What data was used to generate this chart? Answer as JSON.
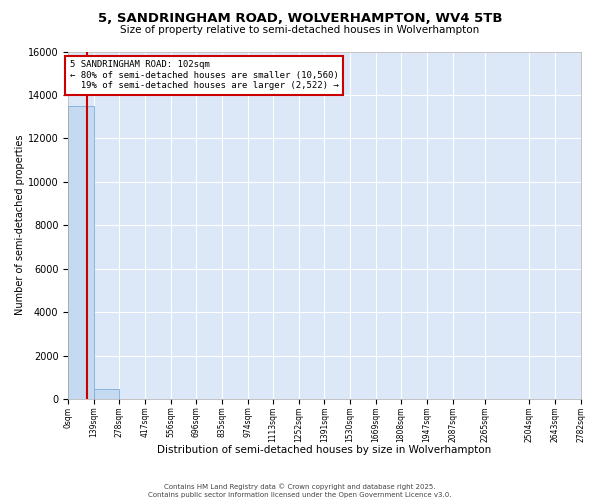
{
  "title": "5, SANDRINGHAM ROAD, WOLVERHAMPTON, WV4 5TB",
  "subtitle": "Size of property relative to semi-detached houses in Wolverhampton",
  "xlabel": "Distribution of semi-detached houses by size in Wolverhampton",
  "ylabel": "Number of semi-detached properties",
  "property_size": 102,
  "property_label": "5 SANDRINGHAM ROAD: 102sqm",
  "pct_smaller": 80,
  "n_smaller": 10560,
  "pct_larger": 19,
  "n_larger": 2522,
  "bin_edges": [
    0,
    139,
    278,
    417,
    556,
    696,
    835,
    974,
    1113,
    1252,
    1391,
    1530,
    1669,
    1808,
    1947,
    2087,
    2265,
    2504,
    2643,
    2782
  ],
  "bar_heights": [
    13500,
    480,
    4,
    2,
    1,
    0,
    0,
    0,
    0,
    0,
    0,
    0,
    0,
    0,
    0,
    0,
    0,
    0,
    0
  ],
  "bar_color": "#c5d9f0",
  "bar_edge_color": "#7aaddb",
  "red_line_color": "#cc0000",
  "annotation_box_color": "#cc0000",
  "annotation_bg_color": "#ffffff",
  "background_color": "#dce8f8",
  "grid_color": "#ffffff",
  "ylim": [
    0,
    16000
  ],
  "yticks": [
    0,
    2000,
    4000,
    6000,
    8000,
    10000,
    12000,
    14000,
    16000
  ],
  "footer_line1": "Contains HM Land Registry data © Crown copyright and database right 2025.",
  "footer_line2": "Contains public sector information licensed under the Open Government Licence v3.0."
}
